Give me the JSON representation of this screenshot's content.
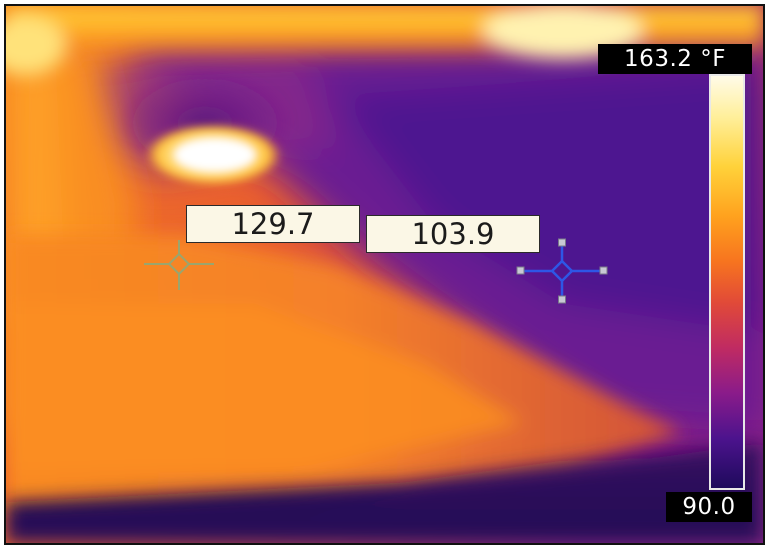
{
  "spot_readouts": [
    {
      "value": "129.7"
    },
    {
      "value": "103.9"
    }
  ],
  "scale": {
    "max_label": "163.2 °F",
    "min_label": "90.0"
  },
  "colors": {
    "palette_hot": "#fffbe8",
    "palette_warm": "#ffa21e",
    "palette_mid": "#c02b62",
    "palette_cool": "#4c138d",
    "cursor_warm_spot": "#9aa56e",
    "cursor_cool_spot": "#2e56e6"
  }
}
